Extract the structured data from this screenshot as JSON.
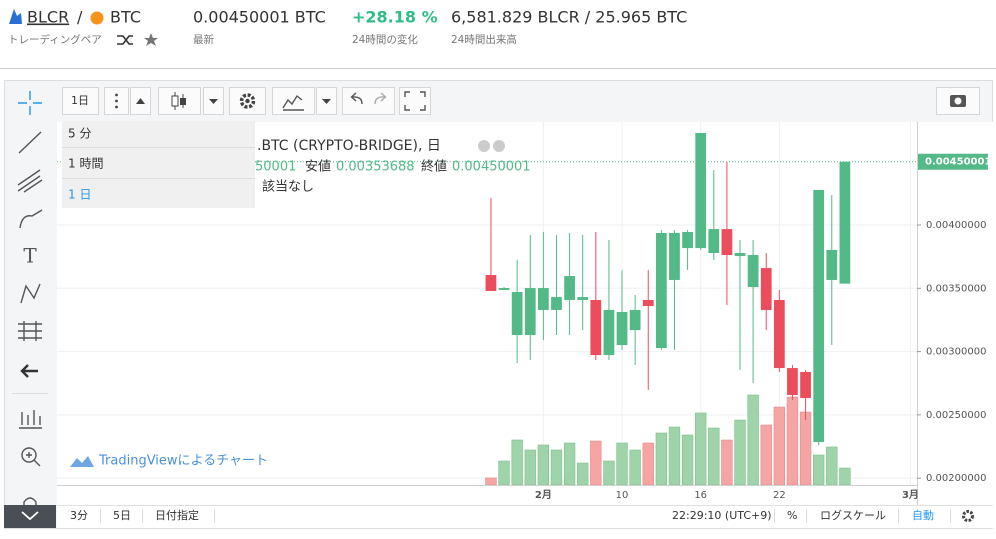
{
  "header": {
    "pair_base": "BLCR",
    "pair_separator": "/",
    "pair_quote": "BTC",
    "pair_label": "トレーディングペア",
    "last": "0.00450001 BTC",
    "last_label": "最新",
    "change": "+28.18 %",
    "change_label": "24時間の変化",
    "volume": "6,581.829 BLCR / 25.965 BTC",
    "volume_label": "24時間出来高"
  },
  "toolbar": {
    "interval": "1日"
  },
  "interval_menu": {
    "items": [
      "5 分",
      "1 時間",
      "1 日"
    ],
    "selected": 2
  },
  "legend": {
    "symbol": ".BTC (CRYPTO-BRIDGE), 日",
    "high_tail": "50001",
    "low_label": "安値",
    "low_value": "0.00353688",
    "close_label": "終値",
    "close_value": "0.00450001",
    "note": "該当なし"
  },
  "watermark": "TradingViewによるチャート",
  "bottom_bar": {
    "ranges": [
      "3分",
      "5日",
      "日付指定"
    ],
    "time": "22:29:10 (UTC+9)",
    "percent": "%",
    "log": "ログスケール",
    "auto": "自動"
  },
  "chart_data": {
    "type": "candlestick",
    "up_color": "#53b987",
    "down_color": "#eb4d5c",
    "volume_up_color": "#9fd3a9",
    "volume_down_color": "#f6a5a5",
    "grid": true,
    "open": [
      0.003605,
      0.003487,
      0.003131,
      0.003131,
      0.003329,
      0.003329,
      0.003408,
      0.003408,
      0.003408,
      0.002973,
      0.003052,
      0.00317,
      0.003408,
      0.003028,
      0.003566,
      0.003818,
      0.003818,
      0.003779,
      0.003968,
      0.003755,
      0.00351,
      0.00366,
      0.003408,
      0.00287,
      0.002839,
      0.002286,
      0.003566,
      0.00353688
    ],
    "high": [
      0.004213,
      0.00351,
      0.003724,
      0.003921,
      0.003945,
      0.003921,
      0.003937,
      0.003921,
      0.003945,
      0.003882,
      0.003644,
      0.003447,
      0.003644,
      0.00396,
      0.00396,
      0.00396,
      0.004727,
      0.004435,
      0.004498,
      0.003882,
      0.003882,
      0.003779,
      0.003487,
      0.002894,
      0.002855,
      0.004277,
      0.004237,
      0.00450001
    ],
    "low": [
      0.003479,
      0.003487,
      0.00291,
      0.002934,
      0.003092,
      0.003131,
      0.003131,
      0.00317,
      0.002934,
      0.002934,
      0.003013,
      0.002894,
      0.002697,
      0.003013,
      0.003013,
      0.003644,
      0.003803,
      0.003724,
      0.003368,
      0.002855,
      0.002752,
      0.00317,
      0.002839,
      0.002618,
      0.002459,
      0.002262,
      0.003052,
      0.00353688
    ],
    "close": [
      0.003479,
      0.003502,
      0.003471,
      0.003502,
      0.003502,
      0.003431,
      0.003597,
      0.003431,
      0.002973,
      0.003329,
      0.003313,
      0.003329,
      0.00336,
      0.003937,
      0.003937,
      0.003945,
      0.004727,
      0.003968,
      0.003763,
      0.003779,
      0.003763,
      0.003329,
      0.00287,
      0.002657,
      0.002633,
      0.004277,
      0.003803,
      0.00450001
    ],
    "volume": [
      7,
      24,
      45,
      35,
      40,
      35,
      42,
      22,
      44,
      24,
      42,
      35,
      42,
      52,
      58,
      50,
      72,
      57,
      45,
      65,
      90,
      60,
      78,
      88,
      73,
      30,
      38,
      17
    ],
    "xlim": [
      -33.1,
      32.5
    ],
    "xticks": [
      {
        "value": 4,
        "label": "2月"
      },
      10,
      16,
      22,
      {
        "value": 32,
        "label": "3月"
      }
    ],
    "ylim": [
      0.001946,
      0.004814
    ],
    "yticks": [
      {
        "value": 0.002,
        "label": "0.00200000"
      },
      {
        "value": 0.0025,
        "label": "0.00250000"
      },
      {
        "value": 0.003,
        "label": "0.00300000"
      },
      {
        "value": 0.0035,
        "label": "0.00350000"
      },
      {
        "value": 0.004,
        "label": "0.00400000"
      }
    ]
  }
}
